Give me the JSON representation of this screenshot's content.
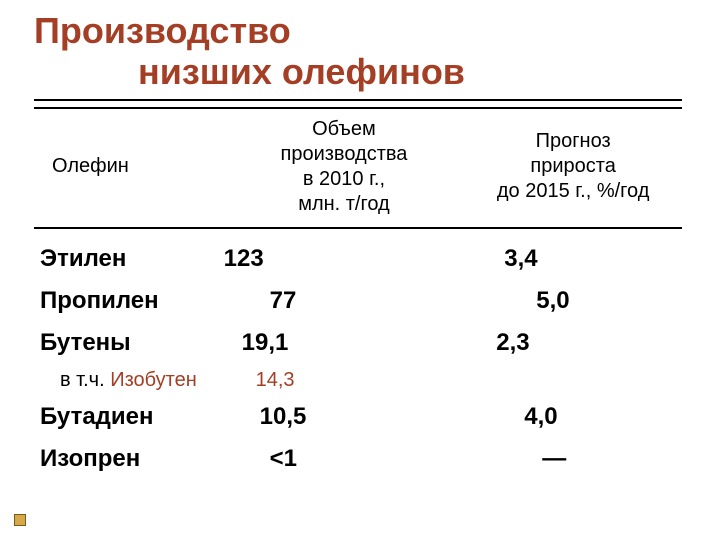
{
  "title": {
    "line1": "Производство",
    "line2": "низших олефинов",
    "color": "#a43e24"
  },
  "columns": {
    "name": "Олефин",
    "volume": "Объем\nпроизводства\nв 2010 г.,\nмлн. т/год",
    "growth": "Прогноз\nприроста\nдо 2015 г., %/год"
  },
  "rows": [
    {
      "name": "Этилен",
      "volume": "123",
      "growth": "3,4",
      "vol_pad": 0,
      "gr_pad": 40,
      "sub": false
    },
    {
      "name": "Пропилен",
      "volume": "77",
      "growth": "5,0",
      "vol_pad": 46,
      "gr_pad": 72,
      "sub": false
    },
    {
      "name": "Бутены",
      "volume": "19,1",
      "growth": "2,3",
      "vol_pad": 18,
      "gr_pad": 32,
      "sub": false
    },
    {
      "name": "в т.ч. Изобутен",
      "volume": "14,3",
      "growth": "",
      "vol_pad": 32,
      "gr_pad": 0,
      "sub": true,
      "name_accent_after": "в т.ч. "
    },
    {
      "name": "Бутадиен",
      "volume": "10,5",
      "growth": "4,0",
      "vol_pad": 36,
      "gr_pad": 60,
      "sub": false
    },
    {
      "name": "Изопрен",
      "volume": "<1",
      "growth": "—",
      "vol_pad": 46,
      "gr_pad": 78,
      "sub": false
    }
  ],
  "accent_color": "#a43e24",
  "bullet": {
    "fill": "#d6a84a",
    "stroke": "#7a5a17"
  }
}
